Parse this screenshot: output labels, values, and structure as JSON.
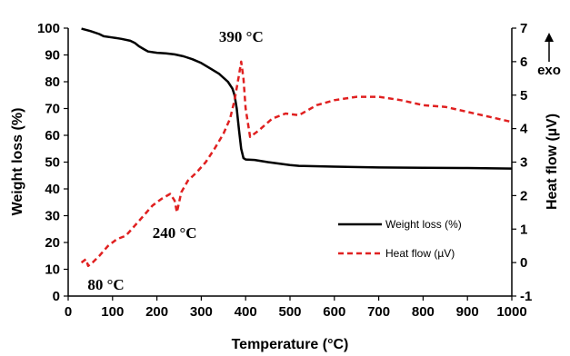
{
  "chart_data": {
    "type": "line",
    "xlabel": "Temperature (°C)",
    "ylabel_left": "Weight loss  (%)",
    "ylabel_right": "Heat flow (µV)",
    "exo_label": "exo",
    "xlim": [
      0,
      1000
    ],
    "ylim_left": [
      0,
      100
    ],
    "ylim_right": [
      -1,
      7
    ],
    "x_ticks": [
      0,
      100,
      200,
      300,
      400,
      500,
      600,
      700,
      800,
      900,
      1000
    ],
    "y_left_ticks": [
      0,
      10,
      20,
      30,
      40,
      50,
      60,
      70,
      80,
      90,
      100
    ],
    "y_right_ticks": [
      -1,
      0,
      1,
      2,
      3,
      4,
      5,
      6,
      7
    ],
    "grid": false,
    "legend_position": "bottom-right",
    "series": [
      {
        "name": "Weight loss (%)",
        "axis": "left",
        "color": "#000000",
        "style": "solid",
        "x": [
          30,
          50,
          70,
          80,
          100,
          120,
          140,
          150,
          160,
          170,
          180,
          200,
          220,
          240,
          260,
          280,
          300,
          320,
          340,
          360,
          370,
          375,
          380,
          385,
          390,
          395,
          400,
          420,
          450,
          500,
          520,
          600,
          700,
          800,
          900,
          1000
        ],
        "values": [
          99.8,
          98.9,
          97.8,
          97.0,
          96.5,
          96.0,
          95.3,
          94.5,
          93.2,
          92.2,
          91.3,
          90.8,
          90.6,
          90.2,
          89.5,
          88.4,
          87.0,
          85.0,
          83.0,
          80.0,
          77.5,
          75.0,
          70.0,
          62.0,
          55.0,
          51.5,
          51.0,
          50.8,
          50.0,
          48.9,
          48.6,
          48.3,
          48.0,
          47.9,
          47.8,
          47.6
        ]
      },
      {
        "name": "Heat flow (µV)",
        "axis": "right",
        "color": "#e02020",
        "style": "dashed",
        "x": [
          30,
          40,
          45,
          55,
          70,
          90,
          110,
          130,
          150,
          170,
          190,
          210,
          230,
          240,
          245,
          250,
          255,
          270,
          290,
          310,
          330,
          350,
          365,
          375,
          385,
          390,
          395,
          400,
          410,
          430,
          460,
          490,
          520,
          560,
          600,
          650,
          700,
          750,
          800,
          850,
          900,
          950,
          1000
        ],
        "values": [
          0.0,
          0.1,
          -0.1,
          0.0,
          0.2,
          0.5,
          0.7,
          0.8,
          1.1,
          1.4,
          1.7,
          1.9,
          2.05,
          1.85,
          1.5,
          1.8,
          2.1,
          2.45,
          2.7,
          3.0,
          3.4,
          3.85,
          4.3,
          4.85,
          5.6,
          6.0,
          5.5,
          4.6,
          3.75,
          3.95,
          4.3,
          4.45,
          4.4,
          4.7,
          4.85,
          4.95,
          4.95,
          4.85,
          4.7,
          4.65,
          4.5,
          4.35,
          4.2
        ]
      }
    ],
    "annotations": [
      {
        "text": "390 °C",
        "x": 390,
        "y": 6.0,
        "axis": "right"
      },
      {
        "text": "240 °C",
        "x": 240,
        "y": 1.5,
        "axis": "right"
      },
      {
        "text": "80 °C",
        "x": 40,
        "y": -0.1,
        "axis": "right"
      }
    ]
  }
}
